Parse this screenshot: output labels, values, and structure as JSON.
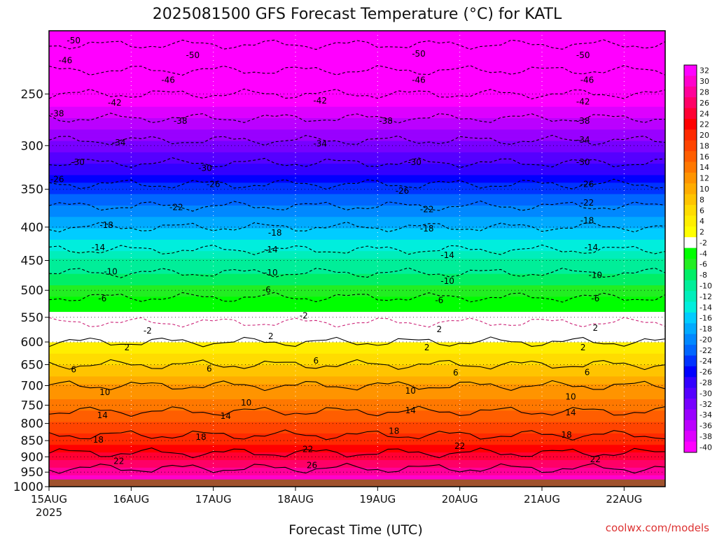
{
  "chart_data": {
    "type": "heatmap",
    "title": "2025081500 GFS Forecast Temperature (°C) for KATL",
    "xlabel": "Forecast Time (UTC)",
    "x_ticks": [
      "15AUG",
      "16AUG",
      "17AUG",
      "18AUG",
      "19AUG",
      "20AUG",
      "21AUG",
      "22AUG"
    ],
    "x_year": "2025",
    "x_range_days": [
      0,
      7.5
    ],
    "y_axis": "pressure (hPa)",
    "y_scale": "log",
    "y_ticks": [
      250,
      300,
      350,
      400,
      450,
      500,
      550,
      600,
      650,
      700,
      750,
      800,
      850,
      900,
      950,
      1000
    ],
    "y_range": [
      200,
      1000
    ],
    "ground_level": 975,
    "grid": true,
    "colorbar": {
      "labels": [
        "32",
        "30",
        "28",
        "26",
        "24",
        "22",
        "20",
        "18",
        "16",
        "14",
        "12",
        "10",
        "8",
        "6",
        "4",
        "2",
        "-2",
        "-4",
        "-6",
        "-8",
        "-10",
        "-12",
        "-14",
        "-16",
        "-18",
        "-20",
        "-22",
        "-24",
        "-26",
        "-28",
        "-30",
        "-32",
        "-34",
        "-36",
        "-38",
        "-40"
      ],
      "colors": [
        "#ff00ff",
        "#ff00cc",
        "#ff0099",
        "#ff0066",
        "#ff0033",
        "#ff0000",
        "#ff2a00",
        "#ff4400",
        "#ff5e00",
        "#ff7800",
        "#ff9400",
        "#ffac00",
        "#ffc400",
        "#ffdc00",
        "#ffee00",
        "#ffff00",
        "#ffffff",
        "#00ff00",
        "#22ee22",
        "#00ee66",
        "#00ee99",
        "#00eebb",
        "#00eedd",
        "#00ccff",
        "#00aaff",
        "#0088ff",
        "#0066ff",
        "#0033ff",
        "#0000ff",
        "#3300ff",
        "#5500ff",
        "#7700ff",
        "#9900ff",
        "#bb00ff",
        "#dd00ff",
        "#ff00ff"
      ]
    },
    "contour_labels": [
      {
        "t": 0.3,
        "p": 207,
        "v": "-50"
      },
      {
        "t": 0.2,
        "p": 222,
        "v": "-46"
      },
      {
        "t": 0.1,
        "p": 268,
        "v": "-38"
      },
      {
        "t": 1.75,
        "p": 218,
        "v": "-50"
      },
      {
        "t": 1.45,
        "p": 238,
        "v": "-46"
      },
      {
        "t": 0.8,
        "p": 258,
        "v": "-42"
      },
      {
        "t": 4.5,
        "p": 217,
        "v": "-50"
      },
      {
        "t": 4.5,
        "p": 238,
        "v": "-46"
      },
      {
        "t": 3.3,
        "p": 256,
        "v": "-42"
      },
      {
        "t": 6.5,
        "p": 218,
        "v": "-50"
      },
      {
        "t": 6.55,
        "p": 238,
        "v": "-46"
      },
      {
        "t": 6.5,
        "p": 257,
        "v": "-42"
      },
      {
        "t": 1.6,
        "p": 275,
        "v": "-38"
      },
      {
        "t": 0.85,
        "p": 297,
        "v": "-34"
      },
      {
        "t": 0.35,
        "p": 318,
        "v": "-30"
      },
      {
        "t": 4.1,
        "p": 275,
        "v": "-38"
      },
      {
        "t": 3.3,
        "p": 298,
        "v": "-34"
      },
      {
        "t": 4.45,
        "p": 318,
        "v": "-30"
      },
      {
        "t": 6.5,
        "p": 275,
        "v": "-38"
      },
      {
        "t": 6.5,
        "p": 294,
        "v": "-34"
      },
      {
        "t": 6.5,
        "p": 318,
        "v": "-30"
      },
      {
        "t": 1.9,
        "p": 325,
        "v": "-30"
      },
      {
        "t": 0.1,
        "p": 338,
        "v": "-26"
      },
      {
        "t": 2.0,
        "p": 344,
        "v": "-26"
      },
      {
        "t": 4.3,
        "p": 352,
        "v": "-26"
      },
      {
        "t": 6.55,
        "p": 344,
        "v": "-26"
      },
      {
        "t": 1.55,
        "p": 373,
        "v": "-22"
      },
      {
        "t": 4.6,
        "p": 376,
        "v": "-22"
      },
      {
        "t": 6.55,
        "p": 367,
        "v": "-22"
      },
      {
        "t": 0.7,
        "p": 397,
        "v": "-18"
      },
      {
        "t": 2.75,
        "p": 408,
        "v": "-18"
      },
      {
        "t": 4.6,
        "p": 402,
        "v": "-18"
      },
      {
        "t": 6.55,
        "p": 391,
        "v": "-18"
      },
      {
        "t": 0.6,
        "p": 430,
        "v": "-14"
      },
      {
        "t": 2.7,
        "p": 433,
        "v": "-14"
      },
      {
        "t": 4.85,
        "p": 442,
        "v": "-14"
      },
      {
        "t": 6.6,
        "p": 430,
        "v": "-14"
      },
      {
        "t": 0.75,
        "p": 468,
        "v": "-10"
      },
      {
        "t": 2.7,
        "p": 470,
        "v": "-10"
      },
      {
        "t": 4.85,
        "p": 484,
        "v": "-10"
      },
      {
        "t": 6.65,
        "p": 474,
        "v": "-10"
      },
      {
        "t": 0.65,
        "p": 515,
        "v": "-6"
      },
      {
        "t": 2.65,
        "p": 499,
        "v": "-6"
      },
      {
        "t": 4.75,
        "p": 518,
        "v": "-6"
      },
      {
        "t": 6.65,
        "p": 515,
        "v": "-6"
      },
      {
        "t": 1.2,
        "p": 577,
        "v": "-2"
      },
      {
        "t": 3.1,
        "p": 547,
        "v": "-2"
      },
      {
        "t": 4.75,
        "p": 574,
        "v": "2"
      },
      {
        "t": 6.65,
        "p": 571,
        "v": "2"
      },
      {
        "t": 0.95,
        "p": 612,
        "v": "2"
      },
      {
        "t": 2.7,
        "p": 588,
        "v": "2"
      },
      {
        "t": 4.6,
        "p": 612,
        "v": "2"
      },
      {
        "t": 6.5,
        "p": 612,
        "v": "2"
      },
      {
        "t": 0.3,
        "p": 661,
        "v": "6"
      },
      {
        "t": 1.95,
        "p": 660,
        "v": "6"
      },
      {
        "t": 3.25,
        "p": 641,
        "v": "6"
      },
      {
        "t": 4.95,
        "p": 669,
        "v": "6"
      },
      {
        "t": 6.55,
        "p": 668,
        "v": "6"
      },
      {
        "t": 0.68,
        "p": 717,
        "v": "10"
      },
      {
        "t": 2.4,
        "p": 744,
        "v": "10"
      },
      {
        "t": 4.4,
        "p": 713,
        "v": "10"
      },
      {
        "t": 6.35,
        "p": 728,
        "v": "10"
      },
      {
        "t": 0.65,
        "p": 777,
        "v": "14"
      },
      {
        "t": 2.15,
        "p": 779,
        "v": "14"
      },
      {
        "t": 4.4,
        "p": 764,
        "v": "14"
      },
      {
        "t": 6.35,
        "p": 770,
        "v": "14"
      },
      {
        "t": 0.6,
        "p": 848,
        "v": "18"
      },
      {
        "t": 1.85,
        "p": 839,
        "v": "18"
      },
      {
        "t": 4.2,
        "p": 822,
        "v": "18"
      },
      {
        "t": 6.3,
        "p": 833,
        "v": "18"
      },
      {
        "t": 0.85,
        "p": 914,
        "v": "22"
      },
      {
        "t": 3.15,
        "p": 876,
        "v": "22"
      },
      {
        "t": 5.0,
        "p": 867,
        "v": "22"
      },
      {
        "t": 6.65,
        "p": 908,
        "v": "22"
      },
      {
        "t": 3.2,
        "p": 927,
        "v": "26"
      }
    ],
    "credit": "coolwx.com/models"
  }
}
